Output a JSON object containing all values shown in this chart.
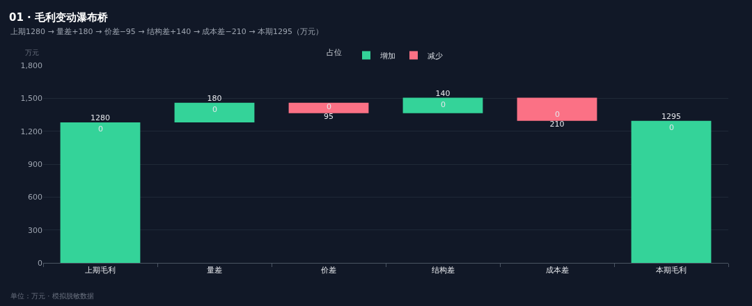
{
  "chart_data": {
    "type": "bar",
    "title": "01 · 毛利变动瀑布桥",
    "subtitle": "上期1280 → 量差+180 → 价差−95 → 结构差+140 → 成本差−210 → 本期1295（万元）",
    "ylabel": "万元",
    "annotations": [
      "单位：万元 · 模拟脱敏数据",
      {
        "text": "0",
        "x": "上期毛利",
        "y": 1280
      },
      {
        "text": "0",
        "x": "量差",
        "y": 1460
      },
      {
        "text": "0",
        "x": "价差",
        "y": 1365
      },
      {
        "text": "0",
        "x": "结构差",
        "y": 1505
      },
      {
        "text": "0",
        "x": "成本差",
        "y": 1295
      },
      {
        "text": "0",
        "x": "本期毛利",
        "y": 1295
      }
    ],
    "categories": [
      "上期毛利",
      "量差",
      "价差",
      "结构差",
      "成本差",
      "本期毛利"
    ],
    "legend_title": "占位",
    "series": [
      {
        "name": "增加",
        "color": "#34d399",
        "values": [
          1280,
          180,
          null,
          140,
          null,
          1295
        ],
        "base": [
          0,
          1280,
          null,
          1365,
          null,
          0
        ],
        "value_labels": [
          "1280",
          "180",
          null,
          "140",
          null,
          "1295"
        ]
      },
      {
        "name": "减少",
        "color": "#fb7185",
        "values": [
          null,
          null,
          95,
          null,
          210,
          null
        ],
        "base": [
          null,
          null,
          1365,
          null,
          1295,
          null
        ],
        "value_labels": [
          null,
          null,
          "95",
          null,
          "210",
          null
        ]
      }
    ],
    "ylim": [
      0,
      1800
    ],
    "yticks": [
      0,
      300,
      600,
      900,
      {
        "value": 1200,
        "label": "1,200"
      },
      {
        "value": 1500,
        "label": "1,500"
      },
      {
        "value": 1800,
        "label": "1,800"
      }
    ],
    "grid": "y",
    "legend": "top"
  }
}
